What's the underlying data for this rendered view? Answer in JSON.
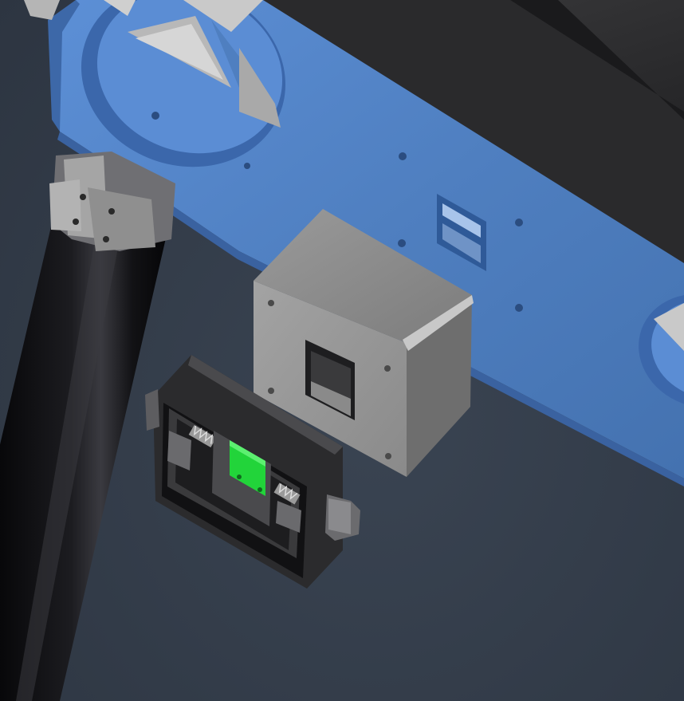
{
  "viewer": {
    "view": "3d-cad-viewport",
    "background_color": "#343d4a"
  },
  "scene": {
    "parts": [
      {
        "id": "frame-plate",
        "icon": "mounting-plate-icon",
        "color": "#4f7fc0"
      },
      {
        "id": "dark-enclosure",
        "icon": "enclosure-box-icon",
        "color": "#2f2f31"
      },
      {
        "id": "black-tube",
        "icon": "cylinder-leg-icon",
        "color": "#0c0c0e"
      },
      {
        "id": "leg-clamp",
        "icon": "clamp-block-icon",
        "color": "#9a9a9a"
      },
      {
        "id": "grey-receiver-block",
        "icon": "receiver-block-icon",
        "color": "#8e8e8e"
      },
      {
        "id": "latch-housing",
        "icon": "latch-housing-icon",
        "color": "#2b2b2d"
      },
      {
        "id": "green-contact-pad",
        "icon": "contact-pad-icon",
        "color": "#22d43a"
      }
    ]
  }
}
